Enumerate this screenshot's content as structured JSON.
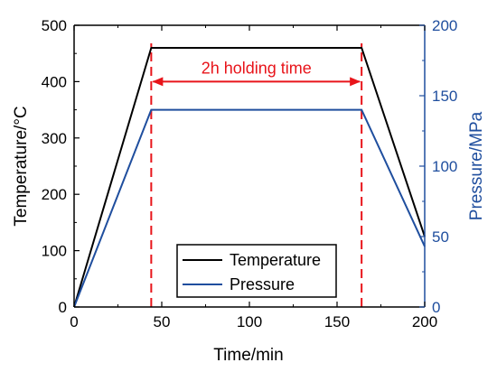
{
  "chart_data": {
    "type": "line",
    "xlabel": "Time/min",
    "ylabel_left": "Temperature/°C",
    "ylabel_right": "Pressure/MPa",
    "xlim": [
      0,
      200
    ],
    "ylim_left": [
      0,
      500
    ],
    "ylim_right": [
      0,
      200
    ],
    "x_ticks": [
      "0",
      "50",
      "100",
      "150",
      "200"
    ],
    "y_left_ticks": [
      "0",
      "100",
      "200",
      "300",
      "400",
      "500"
    ],
    "y_right_ticks": [
      "0",
      "50",
      "100",
      "150",
      "200"
    ],
    "legend_position": "bottom-center",
    "grid": false,
    "series": [
      {
        "name": "Temperature",
        "axis": "left",
        "color": "#000000",
        "x": [
          0,
          44,
          164,
          200
        ],
        "y": [
          0,
          460,
          460,
          125
        ]
      },
      {
        "name": "Pressure",
        "axis": "right",
        "color": "#1f4e9e",
        "x": [
          0,
          44,
          164,
          200
        ],
        "y": [
          0,
          140,
          140,
          43
        ]
      }
    ],
    "annotation": {
      "text": "2h holding time",
      "color": "#e8141a",
      "x_start": 44,
      "x_end": 164,
      "y": 400
    }
  }
}
